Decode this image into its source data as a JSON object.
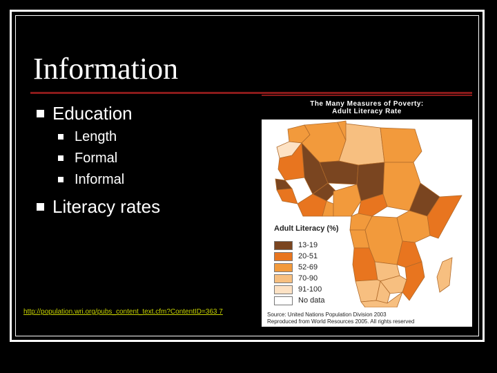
{
  "slide": {
    "title": "Information",
    "bullets": [
      {
        "text": "Education",
        "sub": [
          "Length",
          "Formal",
          "Informal"
        ]
      },
      {
        "text": "Literacy rates",
        "sub": []
      }
    ],
    "source_url": "http://population.wri.org/pubs_content_text.cfm?ContentID=363 7"
  },
  "map": {
    "header_line1": "The Many Measures of Poverty:",
    "header_line2": "Adult Literacy Rate",
    "legend_title": "Adult Literacy (%)",
    "legend": [
      {
        "label": "13-19",
        "color": "#7a4520"
      },
      {
        "label": "20-51",
        "color": "#e8751f"
      },
      {
        "label": "52-69",
        "color": "#f29a3c"
      },
      {
        "label": "70-90",
        "color": "#f7bf80"
      },
      {
        "label": "91-100",
        "color": "#fde2c4"
      },
      {
        "label": "No data",
        "color": "#ffffff"
      }
    ],
    "source_line1": "Source: United Nations Population Division 2003",
    "source_line2": "Reproduced from World Resources 2005. All rights reserved",
    "colors": {
      "sea": "#ffffff",
      "border": "#b06a2a",
      "dark": "#7a4520",
      "mid": "#e8751f",
      "light": "#f29a3c",
      "pale": "#f7bf80"
    }
  }
}
